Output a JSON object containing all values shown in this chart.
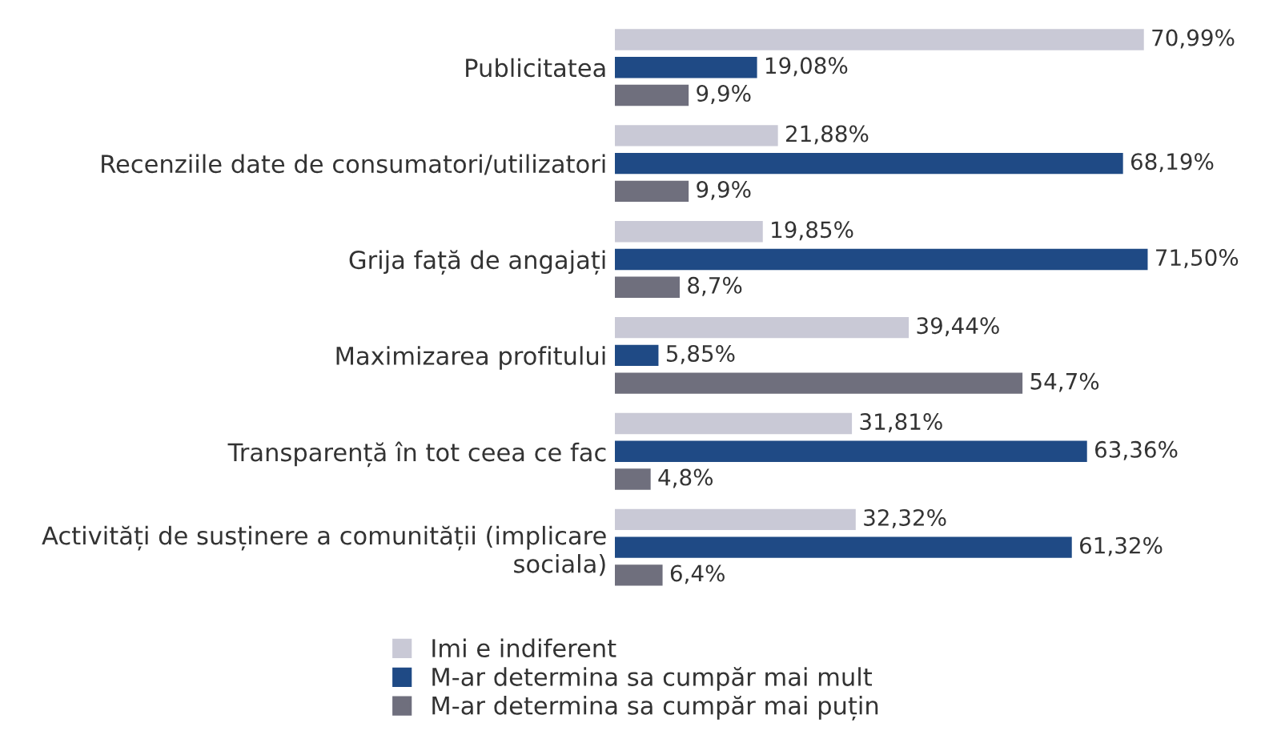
{
  "chart_data": {
    "type": "bar",
    "orientation": "horizontal",
    "categories": [
      "Publicitatea",
      "Recenziile date de consumatori/utilizatori",
      "Grija față de angajați",
      "Maximizarea profitului",
      "Transparență în tot ceea ce fac",
      "Activități de susținere a comunității (implicare\nsociala)"
    ],
    "series": [
      {
        "name": "Imi e indiferent",
        "color": "#c9c9d6",
        "values": [
          70.99,
          21.88,
          19.85,
          39.44,
          31.81,
          32.32
        ],
        "value_labels": [
          "70,99%",
          "21,88%",
          "19,85%",
          "39,44%",
          "31,81%",
          "32,32%"
        ]
      },
      {
        "name": "M-ar determina sa cumpăr mai mult",
        "color": "#1f4a85",
        "values": [
          19.08,
          68.19,
          71.5,
          5.85,
          63.36,
          61.32
        ],
        "value_labels": [
          "19,08%",
          "68,19%",
          "71,50%",
          "5,85%",
          "63,36%",
          "61,32%"
        ]
      },
      {
        "name": "M-ar determina sa cumpăr mai puțin",
        "color": "#6f6f7d",
        "values": [
          9.9,
          9.9,
          8.7,
          54.7,
          4.8,
          6.4
        ],
        "value_labels": [
          "9,9%",
          "9,9%",
          "8,7%",
          "54,7%",
          "4,8%",
          "6,4%"
        ]
      }
    ],
    "tick_labels": "y",
    "grid": false,
    "legend": "bottom"
  }
}
